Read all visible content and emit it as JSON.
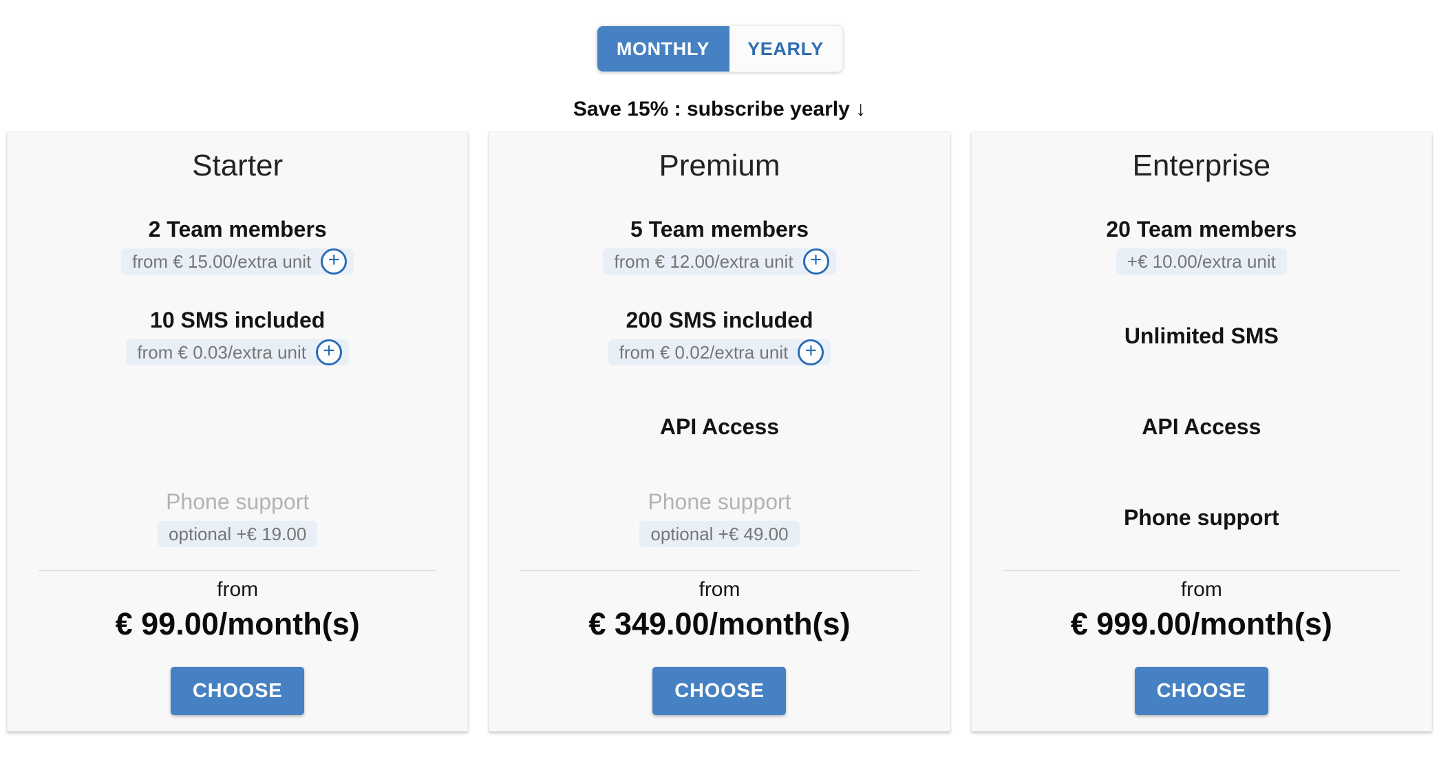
{
  "colors": {
    "accent_blue": "#4681c3",
    "plus_icon_blue": "#2a6bb5",
    "yearly_text_blue": "#2f6eb3",
    "pill_bg": "#e9eff7",
    "pill_text": "#767676",
    "muted_text": "#b3b3b3",
    "card_bg": "#f8f8f8"
  },
  "billing_toggle": {
    "monthly_label": "MONTHLY",
    "yearly_label": "YEARLY",
    "selected": "MONTHLY"
  },
  "promo_banner": "Save 15% : subscribe yearly ↓",
  "icons": {
    "plus": "+",
    "arrow_down": "↓"
  },
  "plans": [
    {
      "name": "Starter",
      "team": {
        "title": "2 Team members",
        "note": "from € 15.00/extra unit",
        "plus": true
      },
      "sms": {
        "title": "10 SMS included",
        "note": "from € 0.03/extra unit",
        "plus": true
      },
      "api": {
        "title": ""
      },
      "phone": {
        "title": "Phone support",
        "note": "optional +€ 19.00",
        "included": false
      },
      "price_prefix": "from",
      "price": "€ 99.00/month(s)",
      "cta": "CHOOSE"
    },
    {
      "name": "Premium",
      "team": {
        "title": "5 Team members",
        "note": "from € 12.00/extra unit",
        "plus": true
      },
      "sms": {
        "title": "200 SMS included",
        "note": "from € 0.02/extra unit",
        "plus": true
      },
      "api": {
        "title": "API Access"
      },
      "phone": {
        "title": "Phone support",
        "note": "optional +€ 49.00",
        "included": false
      },
      "price_prefix": "from",
      "price": "€ 349.00/month(s)",
      "cta": "CHOOSE"
    },
    {
      "name": "Enterprise",
      "team": {
        "title": "20 Team members",
        "note": "+€ 10.00/extra unit",
        "plus": false
      },
      "sms": {
        "title": "Unlimited SMS"
      },
      "api": {
        "title": "API Access"
      },
      "phone": {
        "title": "Phone support",
        "included": true
      },
      "price_prefix": "from",
      "price": "€ 999.00/month(s)",
      "cta": "CHOOSE"
    }
  ]
}
